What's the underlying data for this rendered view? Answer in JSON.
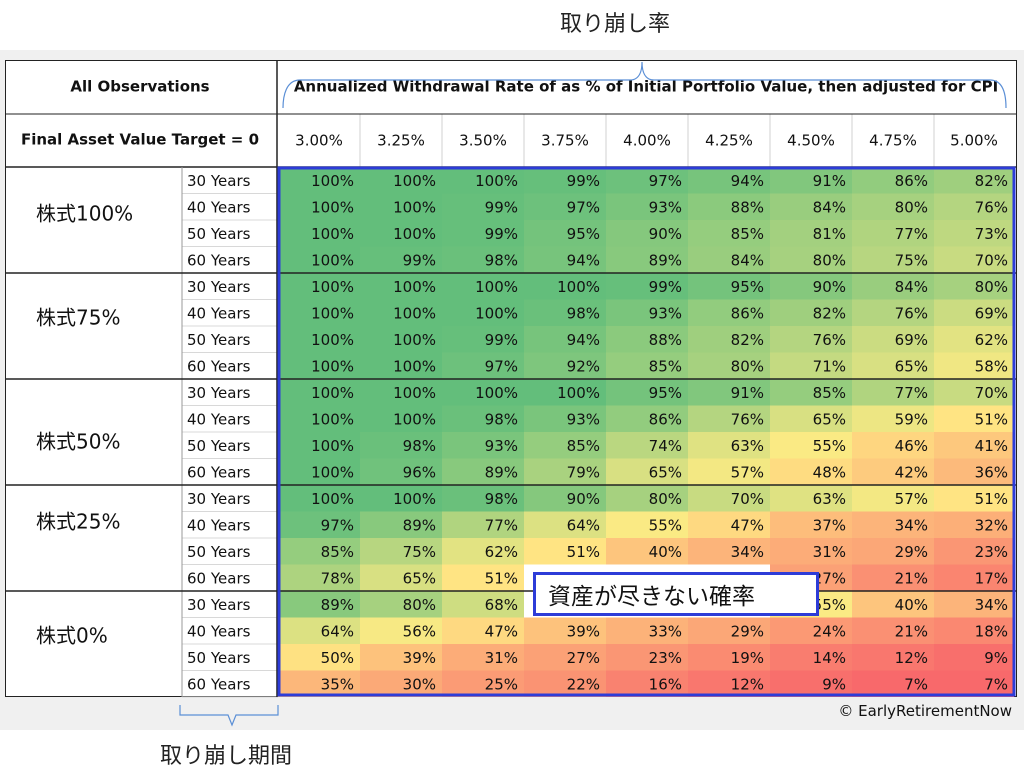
{
  "annotations": {
    "top_label": "取り崩し率",
    "bottom_label": "取り崩し期間",
    "callout": "資産が尽きない確率",
    "copyright": "© EarlyRetirementNow"
  },
  "header": {
    "all_observations": "All Observations",
    "target": "Final Asset Value Target = 0",
    "rate_title": "Annualized Withdrawal Rate of as % of Initial Portfolio Value, then adjusted for CPI"
  },
  "chart_data": {
    "type": "heatmap",
    "title": "",
    "xlabel": "Annualized Withdrawal Rate of as % of Initial Portfolio Value, then adjusted for CPI",
    "x": [
      "3.00%",
      "3.25%",
      "3.50%",
      "3.75%",
      "4.00%",
      "4.25%",
      "4.50%",
      "4.75%",
      "5.00%"
    ],
    "groups": [
      {
        "label": "株式100%",
        "rows": [
          {
            "period": "30 Years",
            "values": [
              100,
              100,
              100,
              99,
              97,
              94,
              91,
              86,
              82
            ]
          },
          {
            "period": "40 Years",
            "values": [
              100,
              100,
              99,
              97,
              93,
              88,
              84,
              80,
              76
            ]
          },
          {
            "period": "50 Years",
            "values": [
              100,
              100,
              99,
              95,
              90,
              85,
              81,
              77,
              73
            ]
          },
          {
            "period": "60 Years",
            "values": [
              100,
              99,
              98,
              94,
              89,
              84,
              80,
              75,
              70
            ]
          }
        ]
      },
      {
        "label": "株式75%",
        "rows": [
          {
            "period": "30 Years",
            "values": [
              100,
              100,
              100,
              100,
              99,
              95,
              90,
              84,
              80
            ]
          },
          {
            "period": "40 Years",
            "values": [
              100,
              100,
              100,
              98,
              93,
              86,
              82,
              76,
              69
            ]
          },
          {
            "period": "50 Years",
            "values": [
              100,
              100,
              99,
              94,
              88,
              82,
              76,
              69,
              62
            ]
          },
          {
            "period": "60 Years",
            "values": [
              100,
              100,
              97,
              92,
              85,
              80,
              71,
              65,
              58
            ]
          }
        ]
      },
      {
        "label": "株式50%",
        "rows": [
          {
            "period": "30 Years",
            "values": [
              100,
              100,
              100,
              100,
              95,
              91,
              85,
              77,
              70
            ]
          },
          {
            "period": "40 Years",
            "values": [
              100,
              100,
              98,
              93,
              86,
              76,
              65,
              59,
              51
            ]
          },
          {
            "period": "50 Years",
            "values": [
              100,
              98,
              93,
              85,
              74,
              63,
              55,
              46,
              41
            ]
          },
          {
            "period": "60 Years",
            "values": [
              100,
              96,
              89,
              79,
              65,
              57,
              48,
              42,
              36
            ]
          }
        ]
      },
      {
        "label": "株式25%",
        "rows": [
          {
            "period": "30 Years",
            "values": [
              100,
              100,
              98,
              90,
              80,
              70,
              63,
              57,
              51
            ]
          },
          {
            "period": "40 Years",
            "values": [
              97,
              89,
              77,
              64,
              55,
              47,
              37,
              34,
              32
            ]
          },
          {
            "period": "50 Years",
            "values": [
              85,
              75,
              62,
              51,
              40,
              34,
              31,
              29,
              23
            ]
          },
          {
            "period": "60 Years",
            "values": [
              78,
              65,
              51,
              null,
              null,
              null,
              27,
              21,
              17
            ]
          }
        ]
      },
      {
        "label": "株式0%",
        "rows": [
          {
            "period": "30 Years",
            "values": [
              89,
              80,
              68,
              null,
              null,
              null,
              55,
              40,
              34
            ]
          },
          {
            "period": "40 Years",
            "values": [
              64,
              56,
              47,
              39,
              33,
              29,
              24,
              21,
              18
            ]
          },
          {
            "period": "50 Years",
            "values": [
              50,
              39,
              31,
              27,
              23,
              19,
              14,
              12,
              9
            ]
          },
          {
            "period": "60 Years",
            "values": [
              35,
              30,
              25,
              22,
              16,
              12,
              9,
              7,
              7
            ]
          }
        ]
      }
    ],
    "unit": "%",
    "color_scale": {
      "low": "#f8696b",
      "mid": "#ffeb84",
      "high": "#63be7b"
    }
  }
}
